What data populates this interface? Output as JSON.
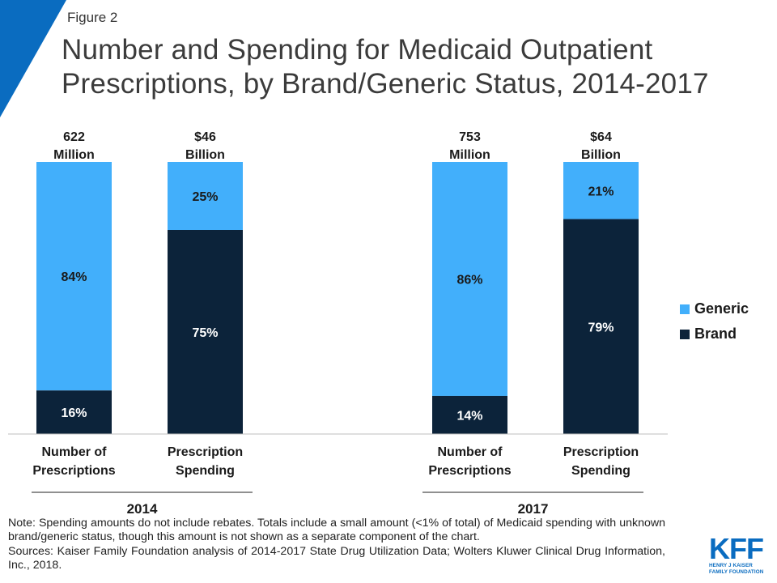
{
  "figure_label": "Figure 2",
  "title": "Number and Spending for Medicaid Outpatient Prescriptions, by Brand/Generic Status, 2014-2017",
  "colors": {
    "generic": "#42AFFB",
    "brand": "#0C233A",
    "corner": "#0A6CC0",
    "divider": "#BFBFBF",
    "label_light": "#1A1A1A",
    "label_dark": "#FFFFFF"
  },
  "chart_data": {
    "type": "bar",
    "stacked": true,
    "percent_stacked": true,
    "ylim": [
      0,
      100
    ],
    "title": "Number and Spending for Medicaid Outpatient Prescriptions, by Brand/Generic Status, 2014-2017",
    "groups": [
      "2014",
      "2017"
    ],
    "categories": [
      {
        "group": "2014",
        "label_line1": "Number of",
        "label_line2": "Prescriptions",
        "total_line1": "622",
        "total_line2": "Million"
      },
      {
        "group": "2014",
        "label_line1": "Prescription",
        "label_line2": "Spending",
        "total_line1": "$46",
        "total_line2": "Billion"
      },
      {
        "group": "2017",
        "label_line1": "Number of",
        "label_line2": "Prescriptions",
        "total_line1": "753",
        "total_line2": "Million"
      },
      {
        "group": "2017",
        "label_line1": "Prescription",
        "label_line2": "Spending",
        "total_line1": "$64",
        "total_line2": "Billion"
      }
    ],
    "series": [
      {
        "name": "Brand",
        "values": [
          16,
          75,
          14,
          79
        ],
        "labels": [
          "16%",
          "75%",
          "14%",
          "79%"
        ]
      },
      {
        "name": "Generic",
        "values": [
          84,
          25,
          86,
          21
        ],
        "labels": [
          "84%",
          "25%",
          "86%",
          "21%"
        ]
      }
    ],
    "legend": {
      "position": "right",
      "items": [
        "Generic",
        "Brand"
      ]
    }
  },
  "note": "Note: Spending amounts do not include rebates. Totals include a small amount (<1% of total) of Medicaid spending with unknown brand/generic status, though this amount is not shown as a separate component of the chart.",
  "sources": "Sources: Kaiser Family Foundation analysis of 2014-2017 State Drug Utilization Data; Wolters Kluwer Clinical Drug Information, Inc., 2018.",
  "logo": {
    "mark": "KFF",
    "line1": "HENRY J KAISER",
    "line2": "FAMILY FOUNDATION"
  }
}
